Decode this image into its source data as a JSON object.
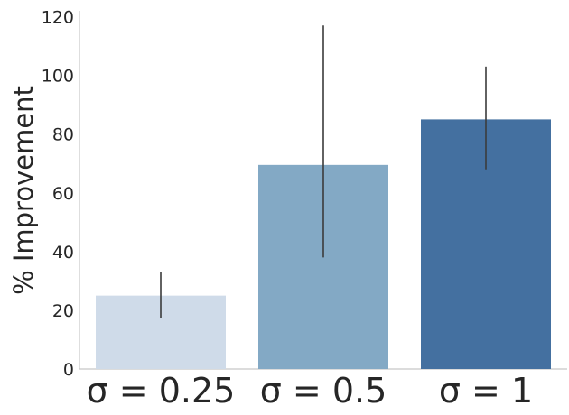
{
  "chart_data": {
    "type": "bar",
    "title": "",
    "xlabel": "",
    "ylabel": "% Improvement",
    "categories": [
      "σ = 0.25",
      "σ = 0.5",
      "σ = 1"
    ],
    "values": [
      25,
      69.5,
      85
    ],
    "error_low": [
      17.5,
      38,
      68
    ],
    "error_high": [
      33,
      117,
      103
    ],
    "colors": [
      "#cfdbe9",
      "#83a9c5",
      "#4470a0"
    ],
    "error_color": "#3b3b3b",
    "ylim": [
      0,
      122
    ],
    "yticks": [
      0,
      20,
      40,
      60,
      80,
      100,
      120
    ],
    "grid": false,
    "legend": "none"
  }
}
